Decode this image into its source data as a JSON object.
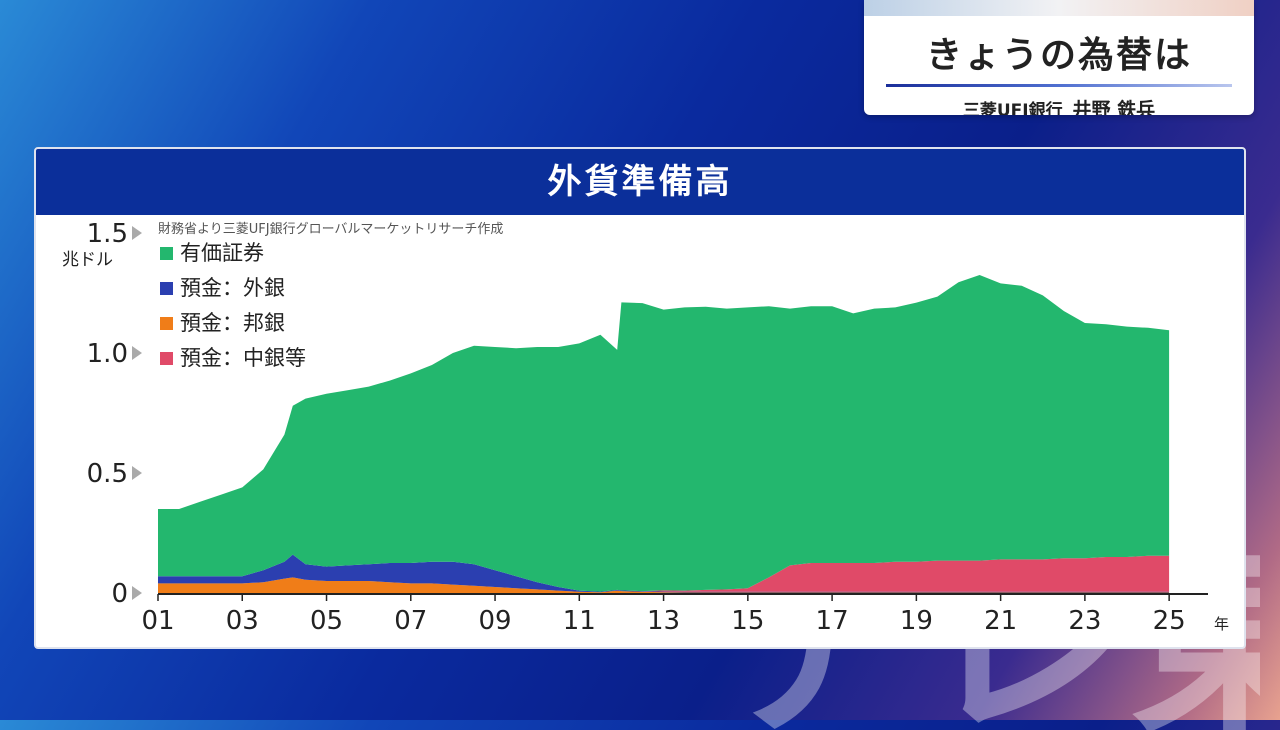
{
  "ticker": {
    "title": "きょうの為替は",
    "org": "三菱UFJ銀行",
    "person": "井野 鉄兵"
  },
  "watermark": {
    "text": "テレ東"
  },
  "chart_data": {
    "type": "area",
    "stacked": true,
    "title": "外貨準備高",
    "source": "財務省より三菱UFJ銀行グローバルマーケットリサーチ作成",
    "ylabel": "兆ドル",
    "xlabel": "",
    "x_unit": "年",
    "xlim": [
      2001,
      2025.4
    ],
    "ylim": [
      0,
      1.5
    ],
    "x": [
      2001.0,
      2001.5,
      2002.0,
      2002.5,
      2003.0,
      2003.5,
      2004.0,
      2004.2,
      2004.5,
      2005.0,
      2005.5,
      2006.0,
      2006.5,
      2007.0,
      2007.5,
      2008.0,
      2008.5,
      2009.0,
      2009.5,
      2010.0,
      2010.5,
      2011.0,
      2011.5,
      2011.9,
      2012.0,
      2012.5,
      2013.0,
      2013.5,
      2014.0,
      2014.5,
      2015.0,
      2015.5,
      2016.0,
      2016.5,
      2017.0,
      2017.5,
      2018.0,
      2018.5,
      2019.0,
      2019.5,
      2020.0,
      2020.5,
      2021.0,
      2021.5,
      2022.0,
      2022.5,
      2023.0,
      2023.5,
      2024.0,
      2024.5,
      2025.0
    ],
    "y_ticks": [
      {
        "value": 0,
        "label": "0"
      },
      {
        "value": 0.5,
        "label": "0.5"
      },
      {
        "value": 1.0,
        "label": "1.0"
      },
      {
        "value": 1.5,
        "label": "1.5"
      }
    ],
    "x_ticks": [
      {
        "value": 2001,
        "label": "01"
      },
      {
        "value": 2003,
        "label": "03"
      },
      {
        "value": 2005,
        "label": "05"
      },
      {
        "value": 2007,
        "label": "07"
      },
      {
        "value": 2009,
        "label": "09"
      },
      {
        "value": 2011,
        "label": "11"
      },
      {
        "value": 2013,
        "label": "13"
      },
      {
        "value": 2015,
        "label": "15"
      },
      {
        "value": 2017,
        "label": "17"
      },
      {
        "value": 2019,
        "label": "19"
      },
      {
        "value": 2021,
        "label": "21"
      },
      {
        "value": 2023,
        "label": "23"
      },
      {
        "value": 2025,
        "label": "25"
      }
    ],
    "legend_position": "top-left",
    "series": [
      {
        "name": "預金：邦銀",
        "color": "#f07d18",
        "values": [
          0.04,
          0.04,
          0.04,
          0.04,
          0.04,
          0.045,
          0.06,
          0.065,
          0.055,
          0.05,
          0.05,
          0.05,
          0.045,
          0.04,
          0.04,
          0.035,
          0.03,
          0.025,
          0.02,
          0.015,
          0.01,
          0.005,
          0.003,
          0.01,
          0.008,
          0.005,
          0.003,
          0.002,
          0.002,
          0.002,
          0.002,
          0.002,
          0.002,
          0.002,
          0.002,
          0.002,
          0.002,
          0.002,
          0.002,
          0.002,
          0.002,
          0.002,
          0.002,
          0.002,
          0.002,
          0.002,
          0.002,
          0.002,
          0.002,
          0.002,
          0.002
        ]
      },
      {
        "name": "預金：外銀",
        "color": "#2b3fb0",
        "values": [
          0.03,
          0.03,
          0.03,
          0.03,
          0.03,
          0.05,
          0.07,
          0.095,
          0.065,
          0.06,
          0.065,
          0.07,
          0.08,
          0.085,
          0.09,
          0.095,
          0.09,
          0.07,
          0.05,
          0.03,
          0.015,
          0.005,
          0.003,
          0.003,
          0.003,
          0.003,
          0.003,
          0.003,
          0.003,
          0.003,
          0.003,
          0.003,
          0.003,
          0.003,
          0.003,
          0.003,
          0.003,
          0.003,
          0.003,
          0.003,
          0.003,
          0.003,
          0.003,
          0.003,
          0.003,
          0.003,
          0.003,
          0.003,
          0.003,
          0.003,
          0.003
        ]
      },
      {
        "name": "預金：中銀等",
        "color": "#e04a68",
        "values": [
          0,
          0,
          0,
          0,
          0,
          0,
          0,
          0,
          0,
          0,
          0,
          0,
          0,
          0,
          0,
          0,
          0,
          0,
          0,
          0,
          0,
          0,
          0,
          0,
          0,
          0,
          0.005,
          0.005,
          0.008,
          0.01,
          0.015,
          0.06,
          0.11,
          0.12,
          0.12,
          0.12,
          0.12,
          0.125,
          0.125,
          0.13,
          0.13,
          0.13,
          0.135,
          0.135,
          0.135,
          0.14,
          0.14,
          0.145,
          0.145,
          0.15,
          0.15
        ]
      },
      {
        "name": "有価証券",
        "color": "#23b76e",
        "values": [
          0.28,
          0.28,
          0.31,
          0.34,
          0.37,
          0.42,
          0.53,
          0.62,
          0.69,
          0.72,
          0.73,
          0.74,
          0.76,
          0.79,
          0.82,
          0.87,
          0.91,
          0.93,
          0.95,
          0.98,
          1.0,
          1.03,
          1.07,
          1.0,
          1.2,
          1.2,
          1.17,
          1.18,
          1.18,
          1.17,
          1.17,
          1.13,
          1.07,
          1.07,
          1.07,
          1.04,
          1.06,
          1.06,
          1.08,
          1.1,
          1.16,
          1.19,
          1.15,
          1.14,
          1.1,
          1.03,
          0.98,
          0.97,
          0.96,
          0.95,
          0.94
        ]
      }
    ]
  }
}
